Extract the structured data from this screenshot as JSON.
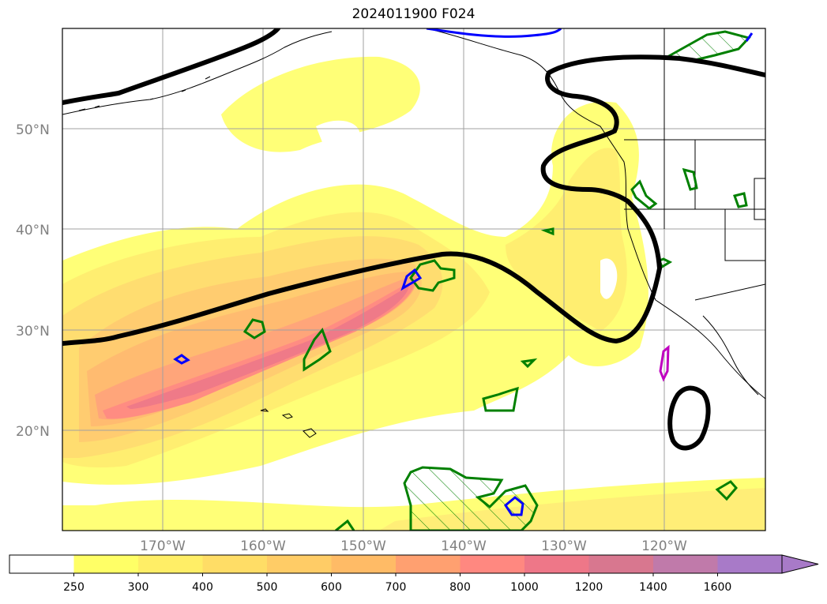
{
  "title": "2024011900 F024",
  "latitude_labels": [
    "50°N",
    "40°N",
    "30°N",
    "20°N"
  ],
  "longitude_labels": [
    "170°W",
    "160°W",
    "150°W",
    "140°W",
    "130°W",
    "120°W"
  ],
  "colorbar": {
    "labels": [
      "250",
      "300",
      "400",
      "500",
      "600",
      "700",
      "800",
      "1000",
      "1200",
      "1400",
      "1600"
    ],
    "colors": [
      "#ffffff",
      "#ffff66",
      "#ffee66",
      "#ffdd66",
      "#ffcc66",
      "#ffbb66",
      "#ffa070",
      "#ff8880",
      "#ee7788",
      "#d8778f",
      "#c07aaa",
      "#a87ac8"
    ],
    "extend": "max"
  },
  "contour_colors": {
    "black": "#000000",
    "green": "#008000",
    "blue": "#0000ff",
    "magenta": "#c000c0"
  },
  "grid": true
}
